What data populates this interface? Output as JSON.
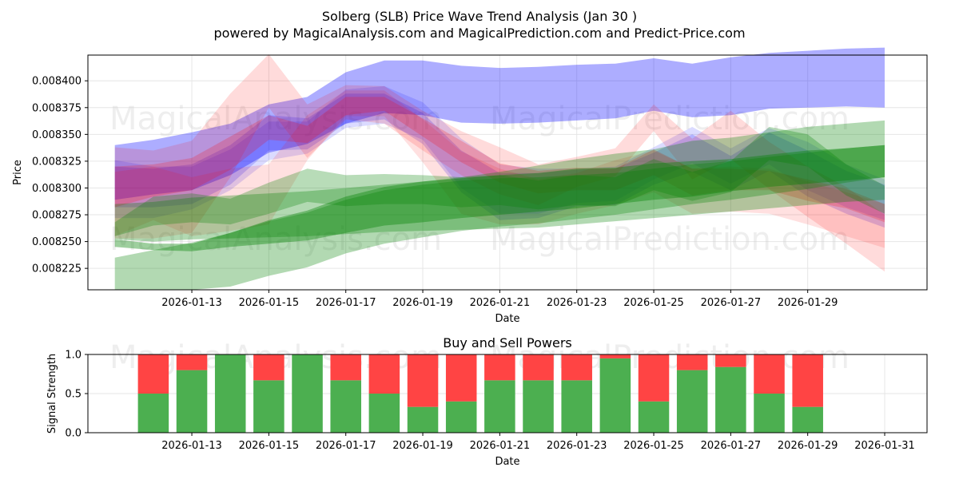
{
  "colors": {
    "blue": "#0000ff",
    "red": "#ff0000",
    "green": "#008000",
    "buy": "#4caf50",
    "sell": "#ff4444",
    "grid": "#e6e6e6"
  },
  "watermarks": [
    "MagicalAnalysis.com",
    "MagicalPrediction.com"
  ],
  "chart_data": [
    {
      "type": "area",
      "title": "Solberg (SLB) Price Wave Trend Analysis (Jan 30 )",
      "subtitle": "powered by MagicalAnalysis.com and MagicalPrediction.com and Predict-Price.com",
      "xlabel": "Date",
      "ylabel": "Price",
      "xlim": [
        10.3,
        32.1
      ],
      "ylim": [
        0.008205,
        0.008424
      ],
      "x_ticks": [
        13,
        15,
        17,
        19,
        21,
        23,
        25,
        27,
        29
      ],
      "x_tick_labels": [
        "2026-01-13",
        "2026-01-15",
        "2026-01-17",
        "2026-01-19",
        "2026-01-21",
        "2026-01-23",
        "2026-01-25",
        "2026-01-27",
        "2026-01-29"
      ],
      "y_ticks": [
        0.0084,
        0.008375,
        0.00835,
        0.008325,
        0.0083,
        0.008275,
        0.00825,
        0.008225
      ],
      "y_tick_labels": [
        "0.008400",
        "0.008375",
        "0.008350",
        "0.008325",
        "0.008300",
        "0.008275",
        "0.008250",
        "0.008225"
      ],
      "grid": true,
      "bands": [
        {
          "name": "blue-wave-wide",
          "color": "blue",
          "opacity": 0.32,
          "x": [
            11,
            12,
            13,
            14,
            15,
            16,
            17,
            18,
            19,
            20,
            21,
            22,
            23,
            24,
            25,
            26,
            27,
            28,
            29,
            30,
            31
          ],
          "upper": [
            0.00834,
            0.008345,
            0.008352,
            0.00836,
            0.008378,
            0.008385,
            0.008408,
            0.008419,
            0.008419,
            0.008414,
            0.008412,
            0.008413,
            0.008415,
            0.008416,
            0.008421,
            0.008416,
            0.008422,
            0.008426,
            0.008428,
            0.00843,
            0.008431
          ],
          "lower": [
            0.008289,
            0.008294,
            0.008298,
            0.008312,
            0.008333,
            0.008341,
            0.00836,
            0.00837,
            0.008368,
            0.008361,
            0.00836,
            0.008361,
            0.008363,
            0.008365,
            0.008372,
            0.008366,
            0.008368,
            0.008374,
            0.008375,
            0.008376,
            0.008375
          ]
        },
        {
          "name": "blue-wave-1",
          "color": "blue",
          "opacity": 0.18,
          "x": [
            11,
            12,
            13,
            14,
            15,
            16,
            17,
            18,
            19,
            20,
            21,
            22,
            23,
            24,
            25,
            26,
            27,
            28,
            29,
            30,
            31
          ],
          "upper": [
            0.00832,
            0.008318,
            0.008322,
            0.00834,
            0.008368,
            0.008365,
            0.008388,
            0.008388,
            0.00837,
            0.008335,
            0.008314,
            0.008314,
            0.008317,
            0.008318,
            0.008333,
            0.00835,
            0.00833,
            0.008352,
            0.008335,
            0.008316,
            0.008303
          ],
          "lower": [
            0.008282,
            0.008282,
            0.008285,
            0.008303,
            0.008335,
            0.008336,
            0.00836,
            0.008364,
            0.008341,
            0.008296,
            0.00827,
            0.008272,
            0.008283,
            0.008284,
            0.008303,
            0.008315,
            0.008298,
            0.008316,
            0.008292,
            0.008276,
            0.008263
          ]
        },
        {
          "name": "blue-wave-2",
          "color": "blue",
          "opacity": 0.14,
          "x": [
            11,
            12,
            13,
            14,
            15,
            16,
            17,
            18,
            19,
            20,
            21,
            22,
            23,
            24,
            25,
            26,
            27,
            28,
            29,
            30,
            31
          ],
          "upper": [
            0.008326,
            0.00832,
            0.00832,
            0.008336,
            0.008362,
            0.008362,
            0.008392,
            0.008395,
            0.00838,
            0.008346,
            0.008322,
            0.008318,
            0.008318,
            0.00832,
            0.008338,
            0.008357,
            0.008337,
            0.008356,
            0.008343,
            0.008322,
            0.008308
          ],
          "lower": [
            0.008272,
            0.008272,
            0.00828,
            0.008298,
            0.008326,
            0.008332,
            0.008356,
            0.00836,
            0.008345,
            0.0083,
            0.008276,
            0.008276,
            0.008286,
            0.008288,
            0.008308,
            0.008323,
            0.008304,
            0.008322,
            0.008298,
            0.008282,
            0.00827
          ]
        },
        {
          "name": "red-wave-1",
          "color": "red",
          "opacity": 0.14,
          "x": [
            11,
            12,
            13,
            14,
            15,
            16,
            17,
            18,
            19,
            20,
            21,
            22,
            23,
            24,
            25,
            26,
            27,
            28,
            29,
            30,
            31
          ],
          "upper": [
            0.008338,
            0.008335,
            0.008344,
            0.008388,
            0.008425,
            0.008378,
            0.008396,
            0.008395,
            0.008372,
            0.008353,
            0.008338,
            0.008322,
            0.008329,
            0.008337,
            0.008378,
            0.008346,
            0.008372,
            0.008343,
            0.00832,
            0.008301,
            0.008275
          ],
          "lower": [
            0.008253,
            0.008253,
            0.008258,
            0.00831,
            0.008375,
            0.008328,
            0.008364,
            0.00836,
            0.008335,
            0.008312,
            0.008294,
            0.008284,
            0.008301,
            0.008311,
            0.008353,
            0.008308,
            0.008327,
            0.008299,
            0.008273,
            0.008248,
            0.008222
          ]
        },
        {
          "name": "red-wave-2",
          "color": "red",
          "opacity": 0.12,
          "x": [
            11,
            12,
            13,
            14,
            15,
            16,
            17,
            18,
            19,
            20,
            21,
            22,
            23,
            24,
            25,
            26,
            27,
            28,
            29,
            30,
            31
          ],
          "upper": [
            0.008315,
            0.00832,
            0.00831,
            0.008318,
            0.008322,
            0.008368,
            0.008391,
            0.008391,
            0.008364,
            0.008334,
            0.008318,
            0.008308,
            0.008314,
            0.008326,
            0.008335,
            0.008318,
            0.00832,
            0.008318,
            0.008306,
            0.008296,
            0.008285
          ],
          "lower": [
            0.008255,
            0.00827,
            0.008255,
            0.00826,
            0.008266,
            0.008326,
            0.008367,
            0.008367,
            0.008324,
            0.008276,
            0.008266,
            0.008266,
            0.008276,
            0.008284,
            0.008296,
            0.008276,
            0.008278,
            0.008276,
            0.008266,
            0.008255,
            0.008244
          ]
        },
        {
          "name": "red-wave-3",
          "color": "red",
          "opacity": 0.2,
          "x": [
            11,
            12,
            13,
            14,
            15,
            16,
            17,
            18,
            19,
            20,
            21,
            22,
            23,
            24,
            25,
            26,
            27,
            28,
            29,
            30,
            31
          ],
          "upper": [
            0.00832,
            0.008322,
            0.008328,
            0.008348,
            0.008368,
            0.008358,
            0.008385,
            0.008385,
            0.008365,
            0.008344,
            0.008323,
            0.008316,
            0.008319,
            0.008318,
            0.008336,
            0.008318,
            0.008318,
            0.008316,
            0.008308,
            0.008299,
            0.008285
          ],
          "lower": [
            0.008282,
            0.008292,
            0.008298,
            0.008317,
            0.008345,
            0.008342,
            0.008368,
            0.008372,
            0.008348,
            0.008324,
            0.008305,
            0.008295,
            0.008298,
            0.008298,
            0.008312,
            0.008293,
            0.008298,
            0.008298,
            0.008288,
            0.008281,
            0.008268
          ]
        },
        {
          "name": "green-wave-wide-1",
          "color": "green",
          "opacity": 0.3,
          "x": [
            11,
            12,
            13,
            14,
            15,
            16,
            17,
            18,
            19,
            20,
            21,
            22,
            23,
            24,
            25,
            26,
            27,
            28,
            29,
            30,
            31
          ],
          "upper": [
            0.008285,
            0.008287,
            0.008291,
            0.008293,
            0.008295,
            0.008297,
            0.0083,
            0.008303,
            0.008306,
            0.00831,
            0.008315,
            0.008321,
            0.008327,
            0.008332,
            0.008336,
            0.008344,
            0.008347,
            0.008352,
            0.008357,
            0.00836,
            0.008363
          ],
          "lower": [
            0.008252,
            0.00825,
            0.008252,
            0.008253,
            0.008254,
            0.008255,
            0.008257,
            0.008259,
            0.00826,
            0.008261,
            0.008262,
            0.008263,
            0.008266,
            0.008269,
            0.008272,
            0.008275,
            0.008278,
            0.008281,
            0.008284,
            0.008287,
            0.008289
          ]
        },
        {
          "name": "green-wave-wide-2",
          "color": "green",
          "opacity": 0.3,
          "x": [
            11,
            12,
            13,
            14,
            15,
            16,
            17,
            18,
            19,
            20,
            21,
            22,
            23,
            24,
            25,
            26,
            27,
            28,
            29,
            30,
            31
          ],
          "upper": [
            0.008235,
            0.008242,
            0.008249,
            0.008258,
            0.008269,
            0.008277,
            0.008289,
            0.008298,
            0.008303,
            0.008307,
            0.008309,
            0.00831,
            0.008312,
            0.008314,
            0.008318,
            0.008322,
            0.008325,
            0.008329,
            0.008333,
            0.008337,
            0.00834
          ],
          "lower": [
            0.008205,
            0.008205,
            0.008205,
            0.008208,
            0.008218,
            0.008226,
            0.008239,
            0.008248,
            0.008254,
            0.00826,
            0.008264,
            0.008267,
            0.008271,
            0.008275,
            0.00828,
            0.008285,
            0.008289,
            0.008294,
            0.008299,
            0.008305,
            0.00831
          ]
        },
        {
          "name": "green-wave-dark",
          "color": "green",
          "opacity": 0.38,
          "x": [
            11,
            12,
            13,
            14,
            15,
            16,
            17,
            18,
            19,
            20,
            21,
            22,
            23,
            24,
            25,
            26,
            27,
            28,
            29,
            30,
            31
          ],
          "upper": [
            0.008252,
            0.008248,
            0.008248,
            0.008258,
            0.00827,
            0.008279,
            0.008292,
            0.008301,
            0.008306,
            0.008309,
            0.008312,
            0.008314,
            0.008318,
            0.008319,
            0.008323,
            0.008325,
            0.008327,
            0.008331,
            0.008335,
            0.008337,
            0.00834
          ],
          "lower": [
            0.008245,
            0.008242,
            0.008241,
            0.008245,
            0.008248,
            0.008251,
            0.008258,
            0.008265,
            0.008268,
            0.008272,
            0.008275,
            0.008278,
            0.008281,
            0.008285,
            0.008289,
            0.008292,
            0.008297,
            0.008301,
            0.008304,
            0.008307,
            0.00831
          ]
        },
        {
          "name": "green-wave-wiggle",
          "color": "green",
          "opacity": 0.28,
          "x": [
            11,
            12,
            13,
            14,
            15,
            16,
            17,
            18,
            19,
            20,
            21,
            22,
            23,
            24,
            25,
            26,
            27,
            28,
            29,
            30,
            31
          ],
          "upper": [
            0.008268,
            0.008292,
            0.008295,
            0.00829,
            0.008305,
            0.008318,
            0.008312,
            0.008313,
            0.008312,
            0.00831,
            0.008312,
            0.008307,
            0.008312,
            0.00831,
            0.008327,
            0.008315,
            0.008325,
            0.008357,
            0.00835,
            0.008322,
            0.008302
          ],
          "lower": [
            0.008255,
            0.008265,
            0.008268,
            0.008266,
            0.008276,
            0.008287,
            0.008283,
            0.008285,
            0.008285,
            0.008282,
            0.008284,
            0.00828,
            0.008284,
            0.008283,
            0.008298,
            0.008288,
            0.008296,
            0.008326,
            0.00832,
            0.008293,
            0.008276
          ]
        }
      ]
    },
    {
      "type": "bar",
      "title": "Buy and Sell Powers",
      "xlabel": "Date",
      "ylabel": "Signal Strength",
      "xlim": [
        10.3,
        32.1
      ],
      "ylim": [
        0,
        1.0
      ],
      "y_ticks": [
        0.0,
        0.5,
        1.0
      ],
      "y_tick_labels": [
        "0.0",
        "0.5",
        "1.0"
      ],
      "x_ticks": [
        13,
        15,
        17,
        19,
        21,
        23,
        25,
        27,
        29,
        31
      ],
      "x_tick_labels": [
        "2026-01-13",
        "2026-01-15",
        "2026-01-17",
        "2026-01-19",
        "2026-01-21",
        "2026-01-23",
        "2026-01-25",
        "2026-01-27",
        "2026-01-29",
        "2026-01-31"
      ],
      "grid": true,
      "x": [
        12,
        13,
        14,
        15,
        16,
        17,
        18,
        19,
        20,
        21,
        22,
        23,
        24,
        25,
        26,
        27,
        28,
        29
      ],
      "series": [
        {
          "name": "Buy",
          "color": "buy",
          "values": [
            0.5,
            0.8,
            1.0,
            0.67,
            1.0,
            0.67,
            0.5,
            0.33,
            0.4,
            0.67,
            0.67,
            0.67,
            0.95,
            0.4,
            0.8,
            0.84,
            0.5,
            0.33
          ]
        },
        {
          "name": "Sell",
          "color": "sell",
          "values": [
            0.5,
            0.2,
            0.0,
            0.33,
            0.0,
            0.33,
            0.5,
            0.67,
            0.6,
            0.33,
            0.33,
            0.33,
            0.05,
            0.6,
            0.2,
            0.16,
            0.5,
            0.67
          ]
        }
      ]
    }
  ]
}
